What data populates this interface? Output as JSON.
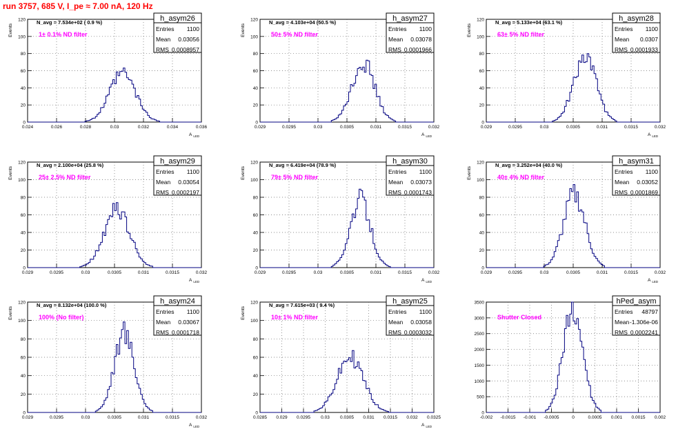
{
  "title": "run 3757,   685 V, I_pe ≈ 7.00 nA, 120 Hz",
  "colors": {
    "title": "#ff0000",
    "annotation": "#ff00ff",
    "histogram": "#000080",
    "axes": "#000000",
    "stats_box": "#ffffff"
  },
  "stats_labels": {
    "entries": "Entries",
    "mean": "Mean",
    "rms": "RMS"
  },
  "chart_data": [
    {
      "type": "histogram",
      "name": "h_asym26",
      "avg_text": "N_avg = 7.534e+02 ( 0.9 %)",
      "annotation": "1± 0.1% ND filter",
      "stats": {
        "entries": "1100",
        "mean": "0.03056",
        "rms": "0.0008957"
      },
      "xlim": [
        0.024,
        0.036
      ],
      "ylim": [
        0,
        120
      ],
      "xticks": [
        "0.024",
        "0.026",
        "0.028",
        "0.03",
        "0.032",
        "0.034",
        "0.036"
      ],
      "yticks": [
        "0",
        "20",
        "40",
        "60",
        "80",
        "100",
        "120"
      ],
      "xlabel": "A",
      "xlabel_sub": "LED",
      "ylabel": "Events",
      "mean": 0.03056,
      "sigma": 0.0008957,
      "peak": 58
    },
    {
      "type": "histogram",
      "name": "h_asym27",
      "avg_text": "N_avg = 4.103e+04 (50.5 %)",
      "annotation": "50± 5% ND filter",
      "stats": {
        "entries": "1100",
        "mean": "0.03078",
        "rms": "0.0001966"
      },
      "xlim": [
        0.029,
        0.032
      ],
      "ylim": [
        0,
        120
      ],
      "xticks": [
        "0.029",
        "0.0295",
        "0.03",
        "0.0305",
        "0.031",
        "0.0315",
        "0.032"
      ],
      "yticks": [
        "0",
        "20",
        "40",
        "60",
        "80",
        "100",
        "120"
      ],
      "xlabel": "A",
      "xlabel_sub": "LED",
      "ylabel": "Events",
      "mean": 0.03078,
      "sigma": 0.0001966,
      "peak": 72
    },
    {
      "type": "histogram",
      "name": "h_asym28",
      "avg_text": "N_avg = 5.133e+04 (63.1 %)",
      "annotation": "63± 5% ND filter",
      "stats": {
        "entries": "1100",
        "mean": "0.0307",
        "rms": "0.0001933"
      },
      "xlim": [
        0.029,
        0.032
      ],
      "ylim": [
        0,
        120
      ],
      "xticks": [
        "0.029",
        "0.0295",
        "0.03",
        "0.0305",
        "0.031",
        "0.0315",
        "0.032"
      ],
      "yticks": [
        "0",
        "20",
        "40",
        "60",
        "80",
        "100",
        "120"
      ],
      "xlabel": "A",
      "xlabel_sub": "LED",
      "ylabel": "Events",
      "mean": 0.0307,
      "sigma": 0.0001933,
      "peak": 80
    },
    {
      "type": "histogram",
      "name": "h_asym29",
      "avg_text": "N_avg = 2.100e+04 (25.8 %)",
      "annotation": "25± 2.5% ND filter",
      "stats": {
        "entries": "1100",
        "mean": "0.03054",
        "rms": "0.0002197"
      },
      "xlim": [
        0.029,
        0.032
      ],
      "ylim": [
        0,
        120
      ],
      "xticks": [
        "0.029",
        "0.0295",
        "0.03",
        "0.0305",
        "0.031",
        "0.0315",
        "0.032"
      ],
      "yticks": [
        "0",
        "20",
        "40",
        "60",
        "80",
        "100",
        "120"
      ],
      "xlabel": "A",
      "xlabel_sub": "LED",
      "ylabel": "Events",
      "mean": 0.03054,
      "sigma": 0.0002197,
      "peak": 68
    },
    {
      "type": "histogram",
      "name": "h_asym30",
      "avg_text": "N_avg = 6.419e+04 (78.9 %)",
      "annotation": "79± 5% ND filter",
      "stats": {
        "entries": "1100",
        "mean": "0.03073",
        "rms": "0.0001743"
      },
      "xlim": [
        0.029,
        0.032
      ],
      "ylim": [
        0,
        120
      ],
      "xticks": [
        "0.029",
        "0.0295",
        "0.03",
        "0.0305",
        "0.031",
        "0.0315",
        "0.032"
      ],
      "yticks": [
        "0",
        "20",
        "40",
        "60",
        "80",
        "100",
        "120"
      ],
      "xlabel": "A",
      "xlabel_sub": "LED",
      "ylabel": "Events",
      "mean": 0.03073,
      "sigma": 0.0001743,
      "peak": 80
    },
    {
      "type": "histogram",
      "name": "h_asym31",
      "avg_text": "N_avg = 3.252e+04 (40.0 %)",
      "annotation": "40± 4% ND filter",
      "stats": {
        "entries": "1100",
        "mean": "0.03052",
        "rms": "0.0001869"
      },
      "xlim": [
        0.029,
        0.032
      ],
      "ylim": [
        0,
        120
      ],
      "xticks": [
        "0.029",
        "0.0295",
        "0.03",
        "0.0305",
        "0.031",
        "0.0315",
        "0.032"
      ],
      "yticks": [
        "0",
        "20",
        "40",
        "60",
        "80",
        "100",
        "120"
      ],
      "xlabel": "A",
      "xlabel_sub": "LED",
      "ylabel": "Events",
      "mean": 0.03052,
      "sigma": 0.0001869,
      "peak": 86
    },
    {
      "type": "histogram",
      "name": "h_asym24",
      "avg_text": "N_avg = 8.132e+04 (100.0 %)",
      "annotation": "100% (No filter)",
      "stats": {
        "entries": "1100",
        "mean": "0.03067",
        "rms": "0.0001718"
      },
      "xlim": [
        0.029,
        0.032
      ],
      "ylim": [
        0,
        120
      ],
      "xticks": [
        "0.029",
        "0.0295",
        "0.03",
        "0.0305",
        "0.031",
        "0.0315",
        "0.032"
      ],
      "yticks": [
        "0",
        "20",
        "40",
        "60",
        "80",
        "100",
        "120"
      ],
      "xlabel": "A",
      "xlabel_sub": "LED",
      "ylabel": "Events",
      "mean": 0.03067,
      "sigma": 0.0001718,
      "peak": 90
    },
    {
      "type": "histogram",
      "name": "h_asym25",
      "avg_text": "N_avg = 7.615e+03 ( 9.4 %)",
      "annotation": "10± 1% ND filter",
      "stats": {
        "entries": "1100",
        "mean": "0.03058",
        "rms": "0.0003032"
      },
      "xlim": [
        0.0285,
        0.0325
      ],
      "ylim": [
        0,
        120
      ],
      "xticks": [
        "0.0285",
        "0.029",
        "0.0295",
        "0.03",
        "0.0305",
        "0.031",
        "0.0315",
        "0.032",
        "0.0325"
      ],
      "yticks": [
        "0",
        "20",
        "40",
        "60",
        "80",
        "100",
        "120"
      ],
      "xlabel": "A",
      "xlabel_sub": "LED",
      "ylabel": "Events",
      "mean": 0.03058,
      "sigma": 0.0003032,
      "peak": 62
    },
    {
      "type": "histogram",
      "name": "hPed_asym",
      "avg_text": "",
      "annotation": "Shutter Closed",
      "stats": {
        "entries": "48797",
        "mean": "-1.306e-06",
        "rms": "0.0002241"
      },
      "xlim": [
        -0.002,
        0.002
      ],
      "ylim": [
        0,
        3500
      ],
      "xticks": [
        "-0.002",
        "-0.0015",
        "-0.001",
        "-0.0005",
        "0",
        "0.0005",
        "0.001",
        "0.0015",
        "0.002"
      ],
      "yticks": [
        "0",
        "500",
        "1000",
        "1500",
        "2000",
        "2500",
        "3000",
        "3500"
      ],
      "xlabel": "",
      "xlabel_sub": "",
      "ylabel": "",
      "mean": -1.3e-06,
      "sigma": 0.0002241,
      "peak": 3400
    }
  ]
}
